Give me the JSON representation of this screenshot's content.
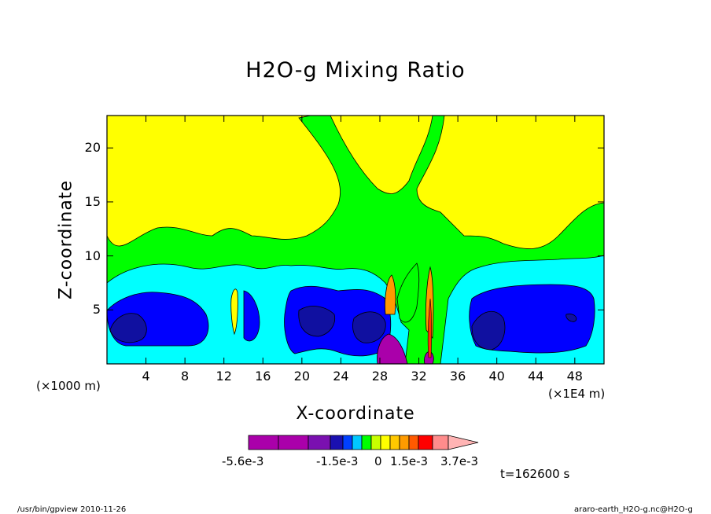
{
  "chart_data": {
    "type": "contour",
    "title": "H2O-g Mixing Ratio",
    "xlabel": "X-coordinate",
    "ylabel": "Z-coordinate",
    "x_unit_left": "(×1000 m)",
    "x_unit_right": "(×1E4 m)",
    "xlim": [
      0,
      51
    ],
    "ylim": [
      0,
      23
    ],
    "x_ticks": [
      4,
      8,
      12,
      16,
      20,
      24,
      28,
      32,
      36,
      40,
      44,
      48
    ],
    "y_ticks": [
      5,
      10,
      15,
      20
    ],
    "time_label": "t=162600 s",
    "colorbar": {
      "colors": [
        "#aa00aa",
        "#aa00aa",
        "#7a10b0",
        "#1a10b0",
        "#0040ff",
        "#00c8ff",
        "#00ff00",
        "#c8ff00",
        "#ffff00",
        "#ffc800",
        "#ff9b00",
        "#ff5a00",
        "#ff0000",
        "#ff8c8c",
        "#ffb4b4"
      ],
      "tick_labels": [
        "-5.6e-3",
        "-1.5e-3",
        "0",
        "1.5e-3",
        "3.7e-3"
      ]
    },
    "fields": [
      {
        "level": "green",
        "color": "#00ff00"
      },
      {
        "level": "cyan",
        "color": "#00ffff"
      },
      {
        "level": "blue",
        "color": "#0000ff"
      },
      {
        "level": "darkblue",
        "color": "#1010a0"
      },
      {
        "level": "purple",
        "color": "#aa00aa"
      },
      {
        "level": "orange",
        "color": "#ff9900"
      }
    ]
  },
  "footer": {
    "left": "/usr/bin/gpview   2010-11-26",
    "right": "araro-earth_H2O-g.nc@H2O-g"
  }
}
